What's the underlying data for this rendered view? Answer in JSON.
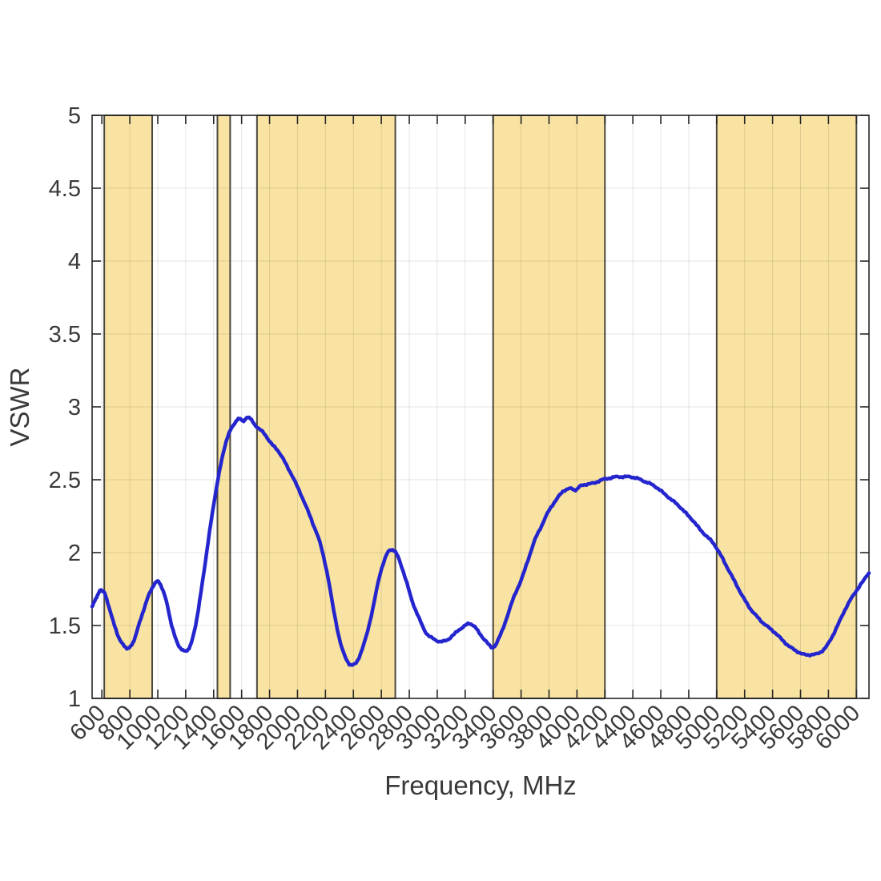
{
  "figure": {
    "xlabel": "Frequency, MHz",
    "ylabel": "VSWR"
  },
  "chart_data": {
    "type": "line",
    "title": "",
    "xlabel": "Frequency, MHz",
    "ylabel": "VSWR",
    "xlim": [
      530,
      6090
    ],
    "ylim": [
      1,
      5
    ],
    "grid": true,
    "legend_position": "none",
    "x_ticks": [
      600,
      800,
      1000,
      1200,
      1400,
      1600,
      1800,
      2000,
      2200,
      2400,
      2600,
      2800,
      3000,
      3200,
      3400,
      3600,
      3800,
      4000,
      4200,
      4400,
      4600,
      4800,
      5000,
      5200,
      5400,
      5600,
      5800,
      6000
    ],
    "y_ticks": [
      1,
      1.5,
      2,
      2.5,
      3,
      3.5,
      4,
      4.5,
      5
    ],
    "highlight_bands": [
      {
        "name": "band-617-960",
        "from": 617,
        "to": 960
      },
      {
        "name": "band-1427-1518",
        "from": 1427,
        "to": 1518
      },
      {
        "name": "band-1710-2700",
        "from": 1710,
        "to": 2700
      },
      {
        "name": "band-3400-4200",
        "from": 3400,
        "to": 4200
      },
      {
        "name": "band-5000-6000",
        "from": 5000,
        "to": 6000
      }
    ],
    "colors": {
      "line": "#2425cd",
      "band_fill": "#f9e3a2",
      "band_edge": "#4c483e",
      "grid": "#000000",
      "grid_opacity": 0.1,
      "axis": "#262626",
      "text": "#3a3a3a"
    },
    "series": [
      {
        "name": "VSWR",
        "x": [
          530,
          555,
          580,
          600,
          620,
          650,
          690,
          730,
          770,
          800,
          830,
          870,
          910,
          950,
          990,
          1020,
          1060,
          1100,
          1140,
          1180,
          1210,
          1240,
          1280,
          1320,
          1360,
          1400,
          1440,
          1480,
          1520,
          1560,
          1590,
          1615,
          1640,
          1670,
          1710,
          1760,
          1810,
          1860,
          1910,
          1960,
          2010,
          2060,
          2110,
          2160,
          2210,
          2260,
          2310,
          2360,
          2400,
          2440,
          2490,
          2540,
          2590,
          2640,
          2680,
          2720,
          2770,
          2820,
          2870,
          2920,
          2970,
          3020,
          3070,
          3120,
          3170,
          3220,
          3260,
          3300,
          3350,
          3400,
          3450,
          3500,
          3550,
          3600,
          3650,
          3700,
          3750,
          3800,
          3850,
          3900,
          3950,
          3990,
          4030,
          4080,
          4130,
          4180,
          4230,
          4280,
          4330,
          4380,
          4430,
          4480,
          4530,
          4580,
          4630,
          4680,
          4730,
          4780,
          4830,
          4880,
          4930,
          4980,
          5030,
          5080,
          5130,
          5180,
          5230,
          5280,
          5330,
          5380,
          5430,
          5480,
          5530,
          5580,
          5630,
          5680,
          5730,
          5780,
          5830,
          5880,
          5930,
          5980,
          6030,
          6090
        ],
        "y": [
          1.63,
          1.68,
          1.73,
          1.74,
          1.72,
          1.63,
          1.5,
          1.4,
          1.35,
          1.35,
          1.4,
          1.52,
          1.64,
          1.74,
          1.8,
          1.78,
          1.67,
          1.5,
          1.38,
          1.33,
          1.33,
          1.38,
          1.55,
          1.8,
          2.07,
          2.33,
          2.55,
          2.73,
          2.84,
          2.9,
          2.92,
          2.9,
          2.93,
          2.91,
          2.86,
          2.82,
          2.75,
          2.7,
          2.62,
          2.53,
          2.43,
          2.32,
          2.2,
          2.07,
          1.87,
          1.6,
          1.37,
          1.25,
          1.23,
          1.28,
          1.42,
          1.62,
          1.85,
          1.99,
          2.02,
          1.97,
          1.83,
          1.67,
          1.55,
          1.45,
          1.41,
          1.39,
          1.4,
          1.44,
          1.48,
          1.51,
          1.5,
          1.45,
          1.39,
          1.35,
          1.43,
          1.56,
          1.7,
          1.81,
          1.95,
          2.09,
          2.19,
          2.29,
          2.36,
          2.42,
          2.44,
          2.43,
          2.46,
          2.47,
          2.48,
          2.5,
          2.51,
          2.52,
          2.52,
          2.52,
          2.51,
          2.49,
          2.47,
          2.44,
          2.4,
          2.36,
          2.32,
          2.27,
          2.22,
          2.16,
          2.11,
          2.06,
          1.98,
          1.89,
          1.8,
          1.71,
          1.63,
          1.57,
          1.52,
          1.48,
          1.44,
          1.39,
          1.35,
          1.32,
          1.3,
          1.3,
          1.31,
          1.35,
          1.43,
          1.53,
          1.63,
          1.71,
          1.78,
          1.86
        ]
      }
    ]
  }
}
